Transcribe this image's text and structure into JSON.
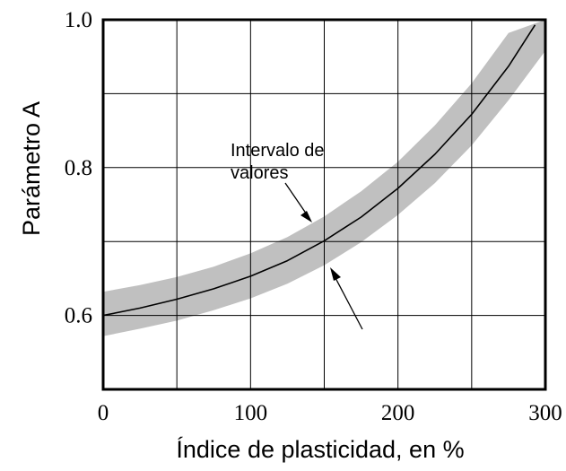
{
  "chart_data": {
    "type": "line",
    "title": "",
    "xlabel": "Índice de plasticidad, en %",
    "ylabel": "Parámetro A",
    "xlim": [
      0,
      300
    ],
    "ylim": [
      0.5,
      1.0
    ],
    "grid": true,
    "x_ticks": [
      {
        "value": 0,
        "label": "0"
      },
      {
        "value": 100,
        "label": "100"
      },
      {
        "value": 200,
        "label": "200"
      },
      {
        "value": 300,
        "label": "300"
      }
    ],
    "y_ticks": [
      {
        "value": 0.6,
        "label": "0.6"
      },
      {
        "value": 0.8,
        "label": "0.8"
      },
      {
        "value": 1.0,
        "label": "1.0"
      }
    ],
    "x_grid_step": 50,
    "y_grid_step": 0.1,
    "series": [
      {
        "x": [
          0,
          25,
          50,
          75,
          100,
          125,
          150,
          175,
          200,
          225,
          250,
          275,
          293
        ],
        "y": [
          0.6,
          0.61,
          0.622,
          0.636,
          0.653,
          0.674,
          0.701,
          0.733,
          0.772,
          0.818,
          0.872,
          0.937,
          0.993
        ],
        "color": "#000000"
      }
    ],
    "band": {
      "x": [
        0,
        25,
        50,
        75,
        100,
        125,
        150,
        175,
        200,
        225,
        250,
        275,
        300
      ],
      "lower": [
        0.572,
        0.582,
        0.593,
        0.607,
        0.623,
        0.643,
        0.668,
        0.699,
        0.736,
        0.779,
        0.83,
        0.891,
        0.958
      ],
      "upper": [
        0.632,
        0.641,
        0.652,
        0.666,
        0.684,
        0.706,
        0.734,
        0.768,
        0.808,
        0.857,
        0.914,
        0.982,
        1.0
      ],
      "color": "#c0c0c0"
    },
    "annotations": [
      {
        "lines": [
          "Intervalo de",
          "valores"
        ]
      }
    ]
  }
}
